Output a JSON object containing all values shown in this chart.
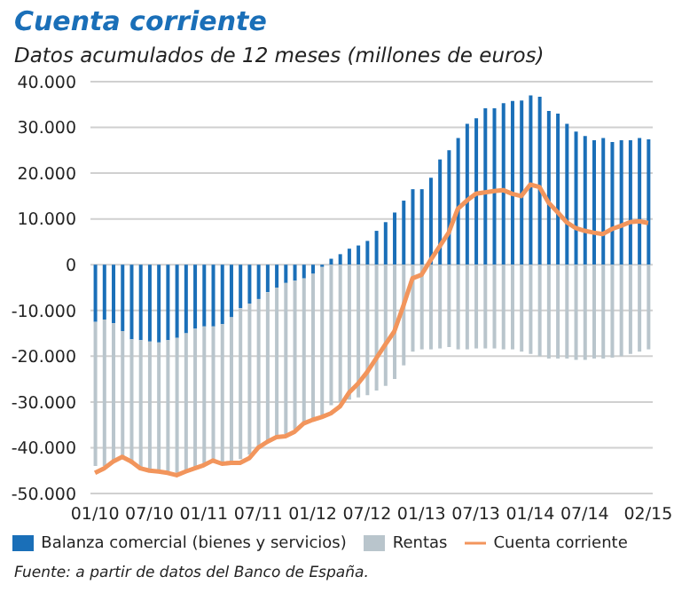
{
  "chart_data": {
    "type": "bar",
    "stacked": true,
    "title": "Cuenta corriente",
    "subtitle": "Datos acumulados de 12 meses (millones de euros)",
    "annotations": [
      "Fuente: a partir de datos del Banco de España."
    ],
    "categories": [
      "01/10",
      null,
      null,
      null,
      null,
      null,
      "07/10",
      null,
      null,
      null,
      null,
      null,
      "01/11",
      null,
      null,
      null,
      null,
      null,
      "07/11",
      null,
      null,
      null,
      null,
      null,
      "01/12",
      null,
      null,
      null,
      null,
      null,
      "07/12",
      null,
      null,
      null,
      null,
      null,
      "01/13",
      null,
      null,
      null,
      null,
      null,
      "07/13",
      null,
      null,
      null,
      null,
      null,
      "01/14",
      null,
      null,
      null,
      null,
      null,
      "07/14",
      null,
      null,
      null,
      null,
      null,
      null,
      "02/15"
    ],
    "series": [
      {
        "name": "Balanza comercial (bienes y servicios)",
        "color": "#1a6fb8",
        "values": [
          -12500,
          -12000,
          -12800,
          -14500,
          -16300,
          -16500,
          -16800,
          -17000,
          -16500,
          -16000,
          -15000,
          -14000,
          -13500,
          -13500,
          -13000,
          -11500,
          -9500,
          -8500,
          -7500,
          -6000,
          -5000,
          -4000,
          -3500,
          -3000,
          -2000,
          -500,
          1300,
          2300,
          3500,
          4200,
          5200,
          7400,
          9300,
          11400,
          14000,
          16500,
          16500,
          19000,
          23000,
          25000,
          27700,
          30800,
          32000,
          34200,
          34200,
          35300,
          35800,
          35900,
          37000,
          36700,
          33600,
          33000,
          30800,
          29100,
          28100,
          27200,
          27700,
          26800,
          27200,
          27200,
          27700,
          27400
        ]
      },
      {
        "name": "Rentas",
        "color": "#b9c5cc",
        "values": [
          -31500,
          -32000,
          -30200,
          -28000,
          -27200,
          -28000,
          -28200,
          -28000,
          -29000,
          -29500,
          -30000,
          -30500,
          -30000,
          -29000,
          -30000,
          -31500,
          -33000,
          -33000,
          -32500,
          -32500,
          -32500,
          -33000,
          -32500,
          -31500,
          -31500,
          -32500,
          -30700,
          -30000,
          -29500,
          -29000,
          -28500,
          -27500,
          -26500,
          -25000,
          -22000,
          -19000,
          -18500,
          -18500,
          -18300,
          -18000,
          -18500,
          -18500,
          -18300,
          -18300,
          -18300,
          -18500,
          -18500,
          -19000,
          -19500,
          -20000,
          -20500,
          -20500,
          -20500,
          -20800,
          -20800,
          -20500,
          -20500,
          -20300,
          -20000,
          -19500,
          -19000,
          -18500
        ]
      },
      {
        "name": "Cuenta corriente",
        "type": "line",
        "color": "#f2955c",
        "values": [
          -45500,
          -44500,
          -43000,
          -42000,
          -43000,
          -44500,
          -45000,
          -45200,
          -45500,
          -46000,
          -45200,
          -44500,
          -43800,
          -42800,
          -43500,
          -43300,
          -43300,
          -42300,
          -40000,
          -38700,
          -37700,
          -37500,
          -36500,
          -34700,
          -33900,
          -33300,
          -32500,
          -31000,
          -28000,
          -26000,
          -23500,
          -20500,
          -17500,
          -14600,
          -9000,
          -3000,
          -2200,
          1000,
          4000,
          7000,
          12200,
          14000,
          15500,
          15800,
          16100,
          16300,
          15500,
          15000,
          17500,
          17000,
          13600,
          11500,
          9300,
          8000,
          7400,
          7000,
          6700,
          7800,
          8500,
          9300,
          9500,
          9100
        ]
      }
    ],
    "ylim": [
      -50000,
      40000
    ],
    "yticks": [
      {
        "value": -50000,
        "label": "-50.000"
      },
      {
        "value": -40000,
        "label": "-40.000"
      },
      {
        "value": -30000,
        "label": "-30.000"
      },
      {
        "value": -20000,
        "label": "-20.000"
      },
      {
        "value": -10000,
        "label": "-10.000"
      },
      0,
      {
        "value": 10000,
        "label": "10.000"
      },
      {
        "value": 20000,
        "label": "20.000"
      },
      {
        "value": 30000,
        "label": "30.000"
      },
      {
        "value": 40000,
        "label": "40.000"
      }
    ],
    "grid": "y",
    "legend": "bottom",
    "marker": "none",
    "line_style": "solid"
  }
}
